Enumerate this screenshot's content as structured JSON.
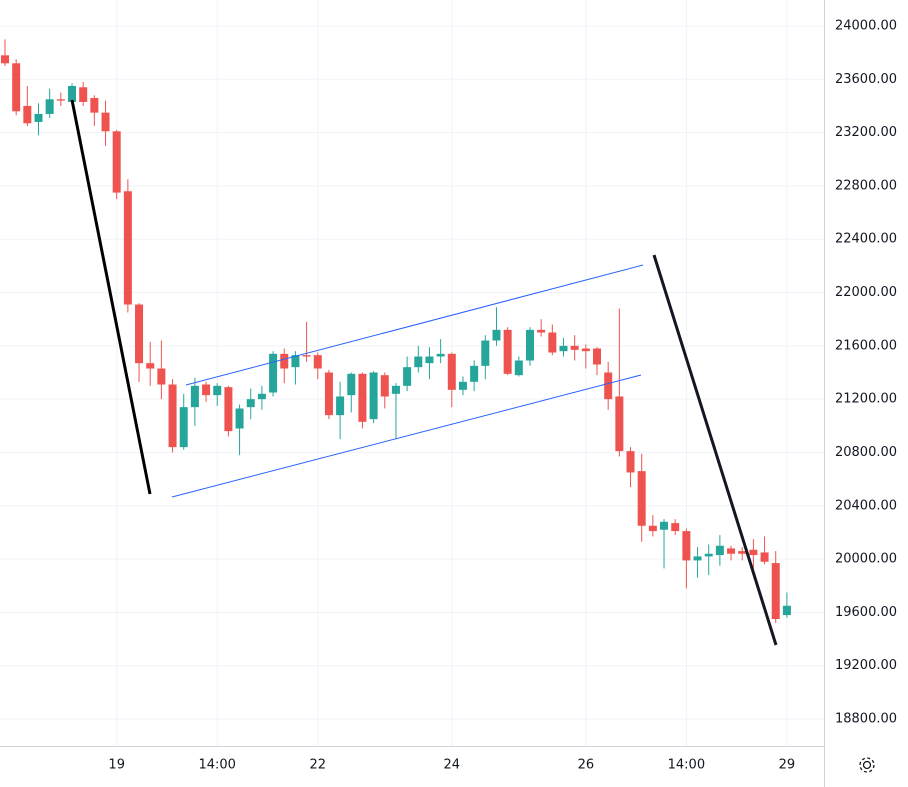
{
  "chart_data": {
    "type": "candlestick",
    "categories": [
      null,
      null,
      null,
      null,
      null,
      null,
      null,
      null,
      null,
      null,
      "19",
      null,
      null,
      null,
      null,
      null,
      null,
      null,
      null,
      "14:00",
      null,
      null,
      null,
      null,
      null,
      null,
      null,
      null,
      "22",
      null,
      null,
      null,
      null,
      null,
      null,
      null,
      null,
      null,
      null,
      null,
      "24",
      null,
      null,
      null,
      null,
      null,
      null,
      null,
      null,
      null,
      null,
      null,
      "26",
      null,
      null,
      null,
      null,
      null,
      null,
      null,
      null,
      "14:00",
      null,
      null,
      null,
      null,
      null,
      null,
      null,
      null,
      "29"
    ],
    "open": [
      23780,
      23720,
      23400,
      23280,
      23340,
      23450,
      23430,
      23540,
      23460,
      23350,
      23210,
      22760,
      21910,
      21470,
      21430,
      21310,
      20840,
      21140,
      21310,
      21230,
      21290,
      20980,
      21140,
      21200,
      21250,
      21540,
      21440,
      21530,
      21530,
      21400,
      21080,
      21230,
      21390,
      21050,
      21380,
      21240,
      21300,
      21440,
      21470,
      21520,
      21540,
      21270,
      21330,
      21450,
      21640,
      21720,
      21380,
      21490,
      21720,
      21700,
      21560,
      21600,
      21580,
      21580,
      21400,
      21220,
      20810,
      20660,
      20250,
      20220,
      20270,
      20210,
      19990,
      20020,
      20030,
      20080,
      20060,
      20070,
      20050,
      19970,
      19580
    ],
    "high": [
      23900,
      23750,
      23550,
      23420,
      23530,
      23500,
      23570,
      23580,
      23480,
      23440,
      23220,
      22850,
      21920,
      21630,
      21640,
      21350,
      21240,
      21360,
      21330,
      21320,
      21300,
      21160,
      21280,
      21300,
      21560,
      21580,
      21560,
      21780,
      21550,
      21420,
      21330,
      21400,
      21400,
      21410,
      21400,
      21320,
      21520,
      21600,
      21590,
      21650,
      21550,
      21370,
      21490,
      21680,
      21890,
      21740,
      21520,
      21740,
      21800,
      21760,
      21660,
      21680,
      21610,
      21590,
      21480,
      21880,
      20840,
      20790,
      20330,
      20300,
      20300,
      20230,
      20090,
      20110,
      20180,
      20100,
      20090,
      20150,
      20170,
      20060,
      19750
    ],
    "low": [
      23700,
      23330,
      23250,
      23180,
      23310,
      23400,
      23420,
      23400,
      23250,
      23100,
      22700,
      21850,
      21330,
      21300,
      21200,
      20800,
      20820,
      21000,
      21180,
      21150,
      20920,
      20780,
      21050,
      21120,
      21220,
      21320,
      21310,
      21480,
      21350,
      21050,
      20900,
      21100,
      20980,
      21020,
      21130,
      20900,
      21260,
      21400,
      21350,
      21470,
      21140,
      21230,
      21260,
      21350,
      21600,
      21380,
      21370,
      21450,
      21670,
      21530,
      21520,
      21490,
      21430,
      21380,
      21120,
      20770,
      20540,
      20130,
      20170,
      19930,
      20180,
      19780,
      19860,
      19880,
      19950,
      19990,
      19990,
      19910,
      19960,
      19520,
      19560
    ],
    "close": [
      23720,
      23360,
      23270,
      23340,
      23450,
      23440,
      23550,
      23430,
      23350,
      23210,
      22750,
      21910,
      21470,
      21430,
      21310,
      20840,
      21140,
      21300,
      21230,
      21300,
      20960,
      21130,
      21200,
      21240,
      21540,
      21430,
      21530,
      21520,
      21430,
      21080,
      21220,
      21390,
      21030,
      21400,
      21220,
      21300,
      21440,
      21520,
      21520,
      21540,
      21270,
      21330,
      21450,
      21640,
      21720,
      21390,
      21490,
      21720,
      21700,
      21550,
      21600,
      21570,
      21560,
      21460,
      21200,
      20810,
      20650,
      20250,
      20210,
      20280,
      20210,
      19990,
      20020,
      20040,
      20100,
      20040,
      20040,
      20030,
      19980,
      19550,
      19650
    ],
    "up_color": "#26a69a",
    "down_color": "#ef5350",
    "ylim": [
      18605,
      24195
    ],
    "yticks": [
      {
        "value": 18800,
        "label": "18800.00"
      },
      {
        "value": 19200,
        "label": "19200.00"
      },
      {
        "value": 19600,
        "label": "19600.00"
      },
      {
        "value": 20000,
        "label": "20000.00"
      },
      {
        "value": 20400,
        "label": "20400.00"
      },
      {
        "value": 20800,
        "label": "20800.00"
      },
      {
        "value": 21200,
        "label": "21200.00"
      },
      {
        "value": 21600,
        "label": "21600.00"
      },
      {
        "value": 22000,
        "label": "22000.00"
      },
      {
        "value": 22400,
        "label": "22400.00"
      },
      {
        "value": 22800,
        "label": "22800.00"
      },
      {
        "value": 23200,
        "label": "23200.00"
      },
      {
        "value": 23600,
        "label": "23600.00"
      },
      {
        "value": 24000,
        "label": "24000.00"
      }
    ],
    "grid": true
  }
}
